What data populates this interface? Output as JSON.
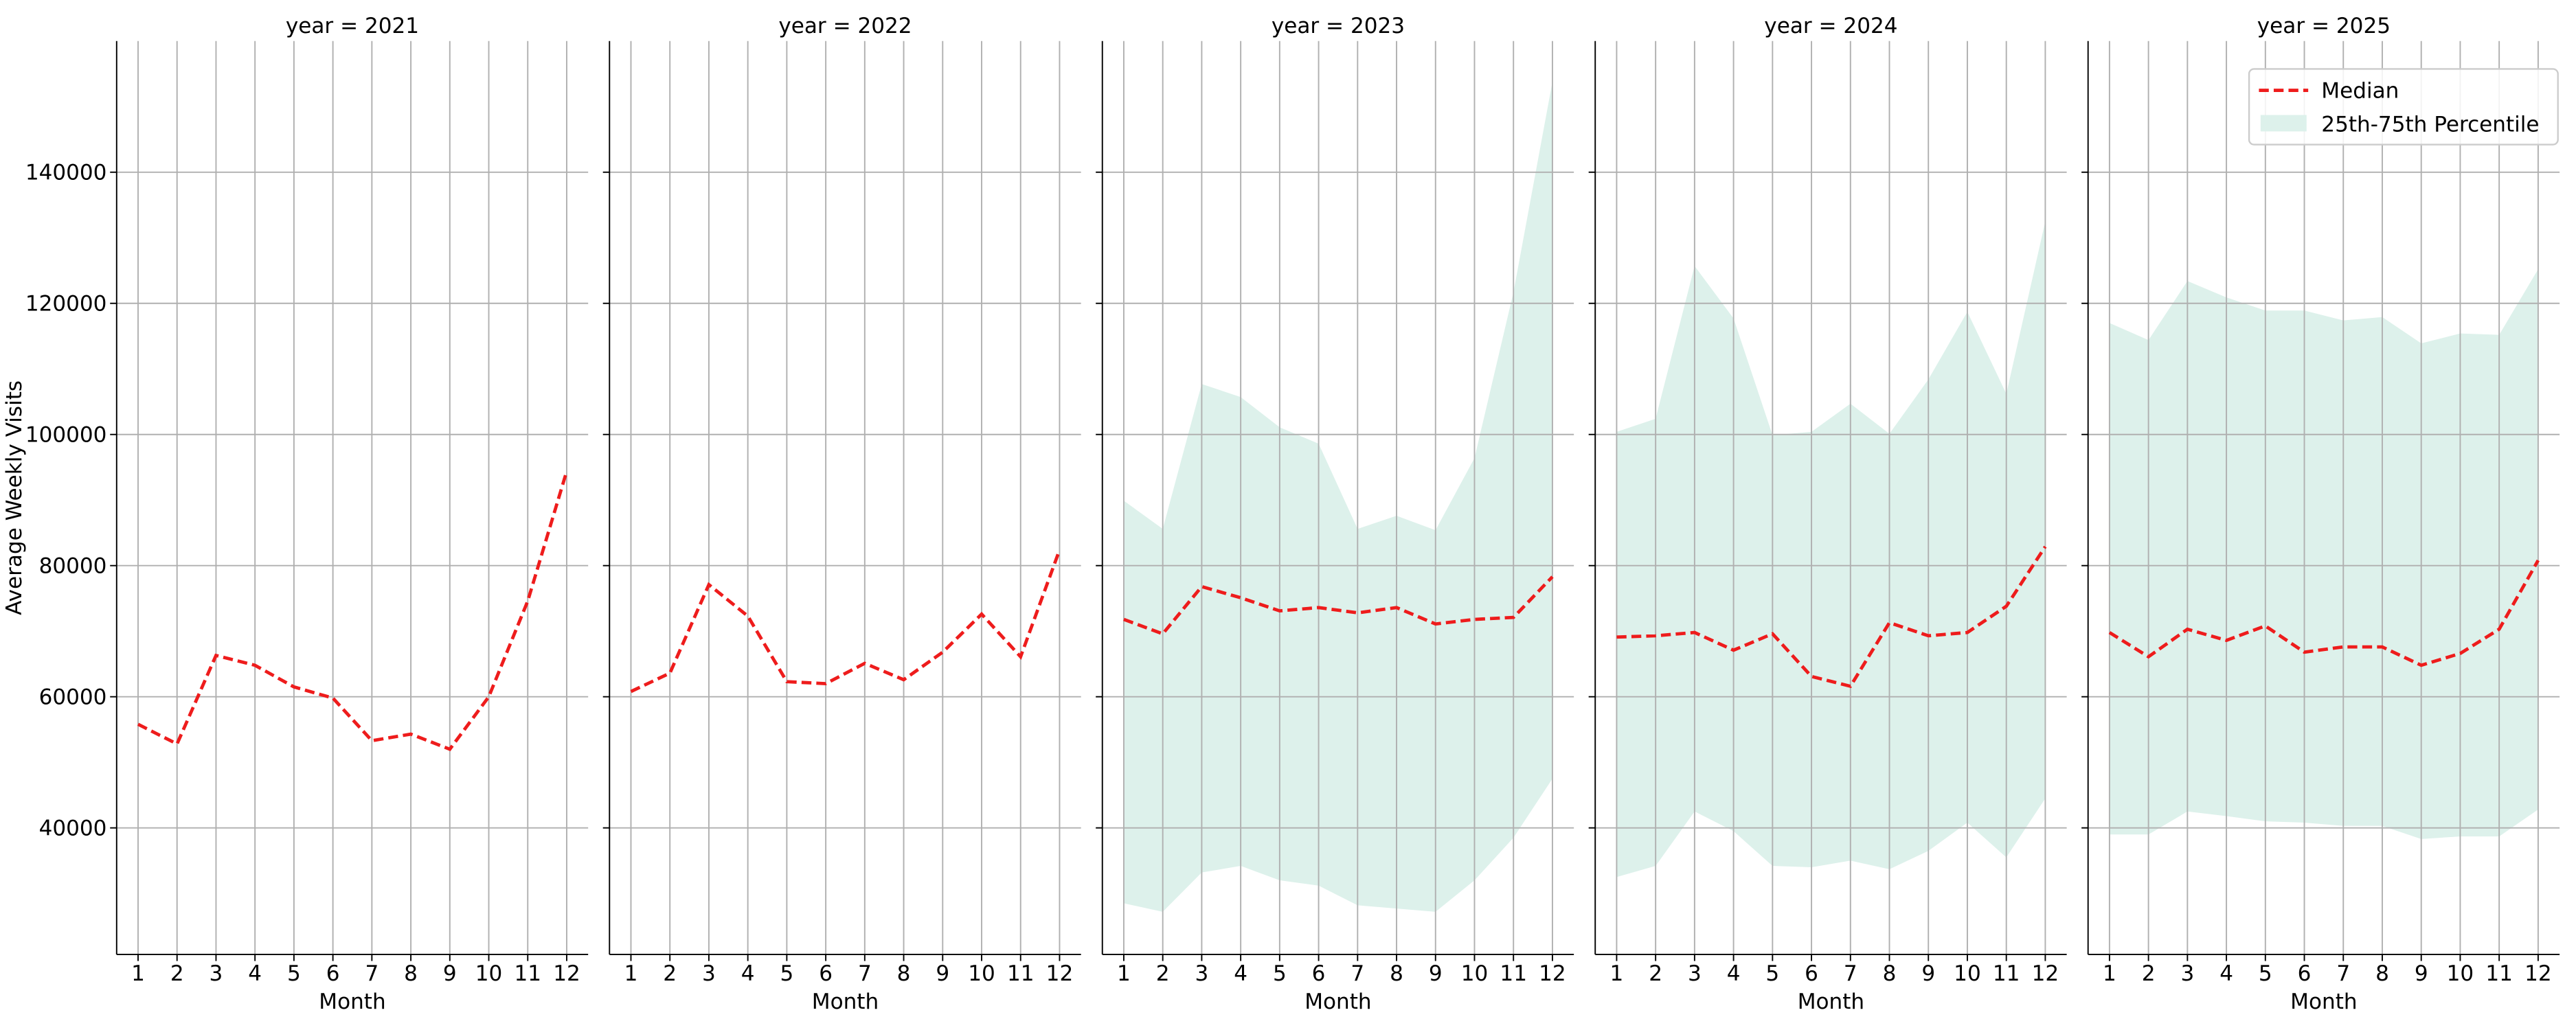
{
  "chart_data": [
    {
      "type": "line",
      "title": "year = 2021",
      "x_label": "Month",
      "y_label": "Average Weekly Visits",
      "x": [
        1,
        2,
        3,
        4,
        5,
        6,
        7,
        8,
        9,
        10,
        11,
        12
      ],
      "xlim": [
        0.45,
        12.55
      ],
      "xticks": [
        1,
        2,
        3,
        4,
        5,
        6,
        7,
        8,
        9,
        10,
        11,
        12
      ],
      "ylim": [
        20700,
        160000
      ],
      "yticks": [
        40000,
        60000,
        80000,
        100000,
        120000,
        140000
      ],
      "grid": true,
      "series": [
        {
          "color": "#ee1c1c",
          "values": [
            55800,
            52800,
            66300,
            64800,
            61500,
            59800,
            53300,
            54300,
            52000,
            60000,
            74600,
            94400
          ]
        }
      ]
    },
    {
      "type": "line",
      "title": "year = 2022",
      "x_label": "Month",
      "x": [
        1,
        2,
        3,
        4,
        5,
        6,
        7,
        8,
        9,
        10,
        11,
        12
      ],
      "xlim": [
        0.45,
        12.55
      ],
      "xticks": [
        1,
        2,
        3,
        4,
        5,
        6,
        7,
        8,
        9,
        10,
        11,
        12
      ],
      "ylim": [
        20700,
        160000
      ],
      "yticks": [
        40000,
        60000,
        80000,
        100000,
        120000,
        140000
      ],
      "grid": true,
      "series": [
        {
          "color": "#ee1c1c",
          "values": [
            60800,
            63600,
            77100,
            72300,
            62300,
            62000,
            65100,
            62600,
            66800,
            72600,
            66100,
            82400
          ]
        }
      ]
    },
    {
      "type": "line",
      "title": "year = 2023",
      "x_label": "Month",
      "x": [
        1,
        2,
        3,
        4,
        5,
        6,
        7,
        8,
        9,
        10,
        11,
        12
      ],
      "xlim": [
        0.45,
        12.55
      ],
      "xticks": [
        1,
        2,
        3,
        4,
        5,
        6,
        7,
        8,
        9,
        10,
        11,
        12
      ],
      "ylim": [
        20700,
        160000
      ],
      "yticks": [
        40000,
        60000,
        80000,
        100000,
        120000,
        140000
      ],
      "grid": true,
      "band": {
        "color": "#ddf1eb",
        "lower": [
          28500,
          27200,
          33200,
          34200,
          32000,
          31200,
          28200,
          27700,
          27200,
          32000,
          38500,
          47500
        ],
        "upper": [
          89900,
          85600,
          107700,
          105700,
          101100,
          98600,
          85600,
          87600,
          85400,
          96400,
          121700,
          153800
        ]
      },
      "series": [
        {
          "color": "#ee1c1c",
          "values": [
            71800,
            69600,
            76800,
            75100,
            73100,
            73600,
            72800,
            73600,
            71100,
            71800,
            72100,
            78300
          ]
        }
      ]
    },
    {
      "type": "line",
      "title": "year = 2024",
      "x_label": "Month",
      "x": [
        1,
        2,
        3,
        4,
        5,
        6,
        7,
        8,
        9,
        10,
        11,
        12
      ],
      "xlim": [
        0.45,
        12.55
      ],
      "xticks": [
        1,
        2,
        3,
        4,
        5,
        6,
        7,
        8,
        9,
        10,
        11,
        12
      ],
      "ylim": [
        20700,
        160000
      ],
      "yticks": [
        40000,
        60000,
        80000,
        100000,
        120000,
        140000
      ],
      "grid": true,
      "band": {
        "color": "#ddf1eb",
        "lower": [
          32500,
          34200,
          42500,
          39500,
          34200,
          34000,
          35000,
          33700,
          36500,
          40800,
          35500,
          44500
        ],
        "upper": [
          100400,
          102400,
          125700,
          117700,
          99900,
          100400,
          104700,
          100100,
          108400,
          118700,
          106200,
          132500
        ]
      },
      "series": [
        {
          "color": "#ee1c1c",
          "values": [
            69100,
            69300,
            69800,
            67100,
            69600,
            63100,
            61600,
            71300,
            69300,
            69800,
            73800,
            82900
          ]
        }
      ]
    },
    {
      "type": "line",
      "title": "year = 2025",
      "x_label": "Month",
      "x": [
        1,
        2,
        3,
        4,
        5,
        6,
        7,
        8,
        9,
        10,
        11,
        12
      ],
      "xlim": [
        0.45,
        12.55
      ],
      "xticks": [
        1,
        2,
        3,
        4,
        5,
        6,
        7,
        8,
        9,
        10,
        11,
        12
      ],
      "ylim": [
        20700,
        160000
      ],
      "yticks": [
        40000,
        60000,
        80000,
        100000,
        120000,
        140000
      ],
      "grid": true,
      "legend": "upper right",
      "band": {
        "name": "25th-75th Percentile",
        "color": "#ddf1eb",
        "lower": [
          39000,
          39000,
          42500,
          41800,
          41000,
          40800,
          40300,
          40300,
          38300,
          38700,
          38700,
          42800
        ],
        "upper": [
          117000,
          114400,
          123400,
          120900,
          118900,
          118900,
          117400,
          117900,
          113900,
          115400,
          115200,
          125200
        ]
      },
      "series": [
        {
          "name": "Median",
          "color": "#ee1c1c",
          "values": [
            69800,
            66100,
            70300,
            68600,
            70800,
            66800,
            67600,
            67600,
            64800,
            66600,
            70300,
            80800
          ]
        }
      ]
    }
  ]
}
